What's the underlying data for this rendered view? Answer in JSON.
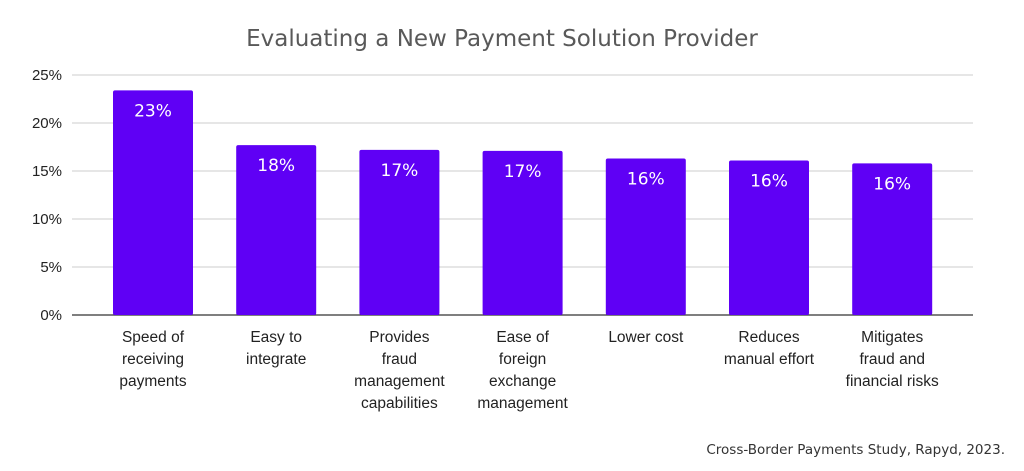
{
  "chart_data": {
    "type": "bar",
    "title": "Evaluating a New Payment Solution Provider",
    "categories": [
      [
        "Speed of",
        "receiving",
        "payments"
      ],
      [
        "Easy to",
        "integrate"
      ],
      [
        "Provides",
        "fraud",
        "management",
        "capabilities"
      ],
      [
        "Ease of",
        "foreign",
        "exchange",
        "management"
      ],
      [
        "Lower cost"
      ],
      [
        "Reduces",
        "manual effort"
      ],
      [
        "Mitigates",
        "fraud and",
        "financial risks"
      ]
    ],
    "values": [
      23.4,
      17.7,
      17.2,
      17.1,
      16.3,
      16.1,
      15.8
    ],
    "data_labels": [
      "23%",
      "18%",
      "17%",
      "17%",
      "16%",
      "16%",
      "16%"
    ],
    "ylim": [
      0,
      25
    ],
    "yticks": [
      0,
      5,
      10,
      15,
      20,
      25
    ],
    "ytick_labels": [
      "0%",
      "5%",
      "10%",
      "15%",
      "20%",
      "25%"
    ],
    "xlabel": "",
    "ylabel": "",
    "grid": true,
    "legend": "none",
    "bar_color": "#5f00f5",
    "source": "Cross-Border Payments Study, Rapyd, 2023."
  }
}
